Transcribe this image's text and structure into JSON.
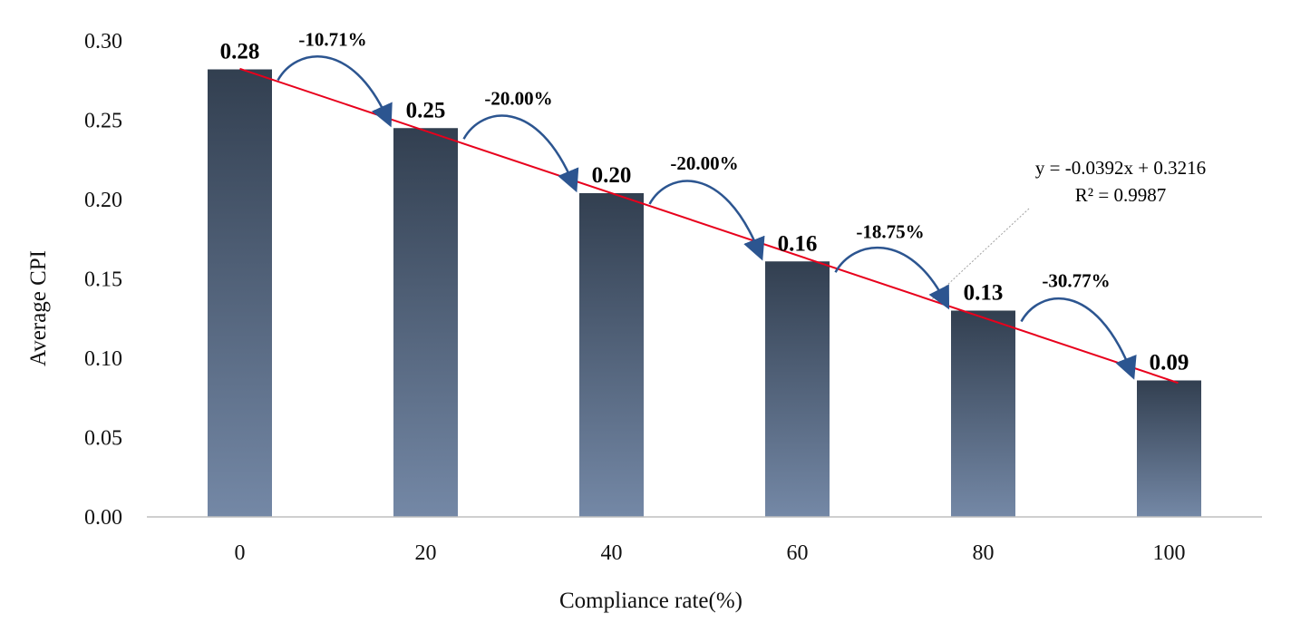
{
  "chart_data": {
    "type": "bar",
    "xlabel": "Compliance rate(%)",
    "ylabel": "Average CPI",
    "categories": [
      "0",
      "20",
      "40",
      "60",
      "80",
      "100"
    ],
    "values": [
      0.282,
      0.245,
      0.204,
      0.161,
      0.13,
      0.086
    ],
    "value_labels": [
      "0.28",
      "0.25",
      "0.20",
      "0.16",
      "0.13",
      "0.09"
    ],
    "change_labels": [
      "-10.71%",
      "-20.00%",
      "-20.00%",
      "-18.75%",
      "-30.77%"
    ],
    "ylim": [
      0,
      0.3
    ],
    "yticks": [
      "0.00",
      "0.05",
      "0.10",
      "0.15",
      "0.20",
      "0.25",
      "0.30"
    ],
    "trendline": {
      "type": "linear",
      "slope": -0.0392,
      "intercept": 0.3216,
      "equation": "y = -0.0392x + 0.3216",
      "r_squared": "R² = 0.9987"
    },
    "grid": false,
    "legend": "none",
    "colors": {
      "bar_top": "#323f50",
      "bar_bottom": "#7488a6",
      "trendline": "#e8001c",
      "arrow": "#2c5590"
    }
  }
}
